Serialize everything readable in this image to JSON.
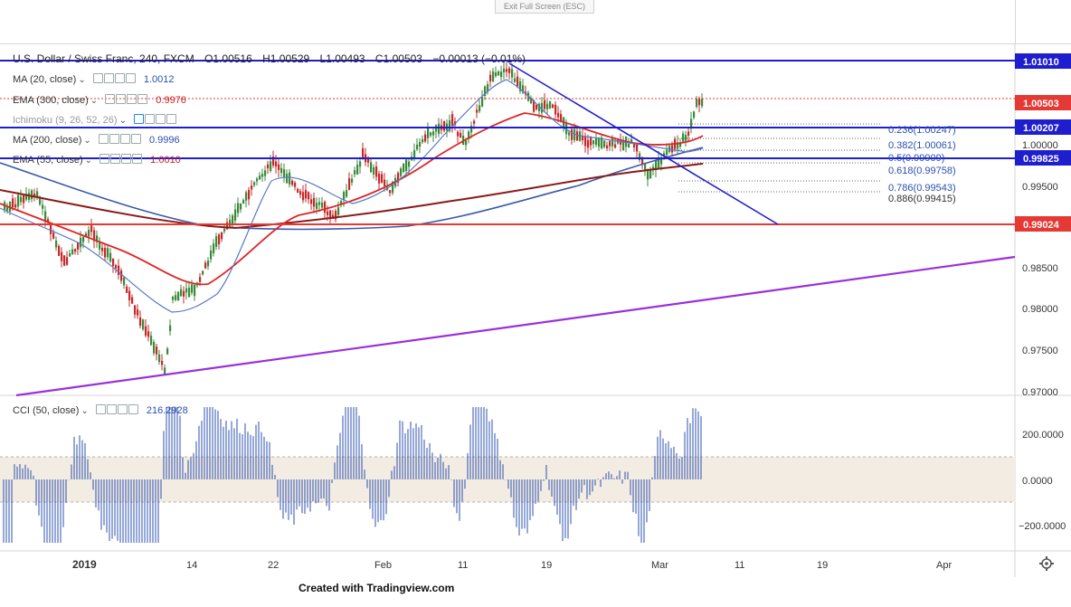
{
  "exit_button": "Exit Full Screen (ESC)",
  "header": {
    "symbol": "U.S. Dollar / Swiss Franc, 240, FXCM",
    "ohlc": {
      "open": "O1.00516",
      "high": "H1.00529",
      "low": "L1.00493",
      "close": "C1.00503",
      "change": "−0.00013 (−0.01%)"
    }
  },
  "indicators": [
    {
      "label": "MA (20, close)",
      "value": "1.0012",
      "color": "#2b50b0"
    },
    {
      "label": "EMA (300, close)",
      "value": "0.9976",
      "color": "#d01f1f"
    },
    {
      "label": "Ichimoku (9, 26, 52, 26)",
      "value": "",
      "color": "#1e88e5"
    },
    {
      "label": "MA (200, close)",
      "value": "0.9996",
      "color": "#2b50b0"
    },
    {
      "label": "EMA (55, close)",
      "value": "1.0010",
      "color": "#d01f1f"
    }
  ],
  "cci": {
    "label": "CCI (50, close)",
    "value": "216.2928"
  },
  "price_scale": {
    "ticks": [
      "1.00000",
      "0.99500",
      "0.98500",
      "0.98000",
      "0.97500",
      "0.97000"
    ],
    "labels": [
      {
        "text": "1.01010",
        "bg": "#1e1ecf"
      },
      {
        "text": "1.00503",
        "bg": "#e53935"
      },
      {
        "text": "1.00207",
        "bg": "#1e1ecf"
      },
      {
        "text": "0.99825",
        "bg": "#1e1ecf"
      },
      {
        "text": "0.99024",
        "bg": "#e53935"
      }
    ]
  },
  "cci_scale": {
    "ticks": [
      "200.0000",
      "0.0000",
      "−200.0000"
    ]
  },
  "fib_levels": [
    "0.236(1.00247)",
    "0.382(1.00061)",
    "0.5(0.99909)",
    "0.618(0.99758)",
    "0.786(0.99543)",
    "0.886(0.99415)"
  ],
  "time_axis": {
    "ticks": [
      "2019",
      "14",
      "22",
      "Feb",
      "11",
      "19",
      "Mar",
      "11",
      "19",
      "Apr"
    ]
  },
  "footer": "Created with Tradingview.com",
  "colors": {
    "up": "#3a8a3a",
    "down": "#c62828",
    "resistance": "#1e1ecf",
    "support": "#e53935",
    "trend": "#9b30d9"
  }
}
